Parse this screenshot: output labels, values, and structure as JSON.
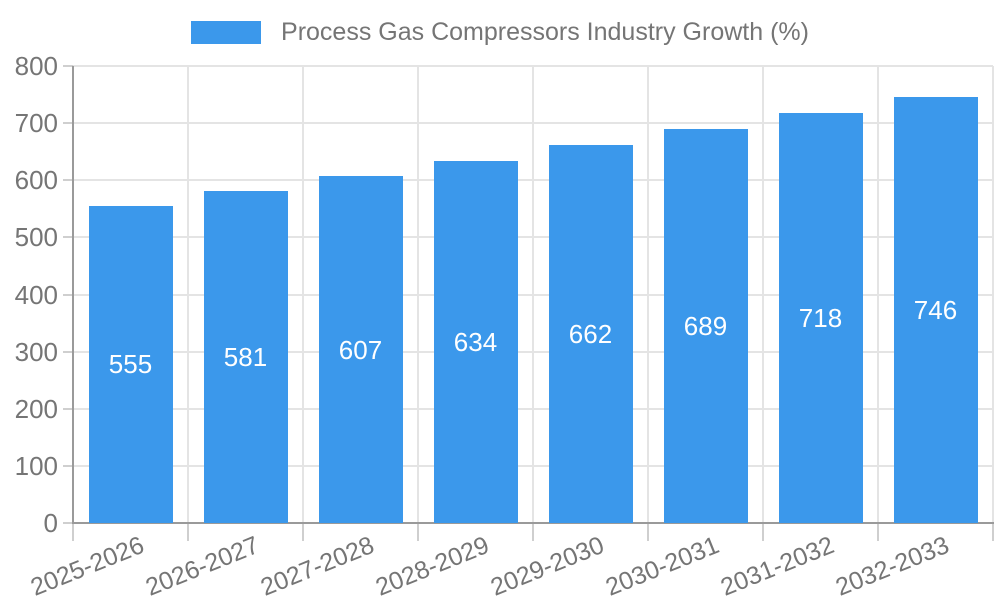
{
  "legend": {
    "label": "Process Gas Compressors Industry Growth (%)"
  },
  "chart_data": {
    "type": "bar",
    "title": "Process Gas Compressors Industry Growth (%)",
    "categories": [
      "2025-2026",
      "2026-2027",
      "2027-2028",
      "2028-2029",
      "2029-2030",
      "2030-2031",
      "2031-2032",
      "2032-2033"
    ],
    "values": [
      555,
      581,
      607,
      634,
      662,
      689,
      718,
      746
    ],
    "xlabel": "",
    "ylabel": "",
    "ylim": [
      0,
      800
    ],
    "ytick_step": 100,
    "yticks": [
      0,
      100,
      200,
      300,
      400,
      500,
      600,
      700,
      800
    ],
    "grid": true,
    "legend_position": "top",
    "legend_entries": [
      "Process Gas Compressors Industry Growth (%)"
    ],
    "bar_color": "#3b98eb",
    "bar_value_label_color": "#ffffff",
    "axis_text_color": "#757575",
    "grid_color": "#e4e4e4",
    "axis_line_color": "#9a9a9a"
  }
}
